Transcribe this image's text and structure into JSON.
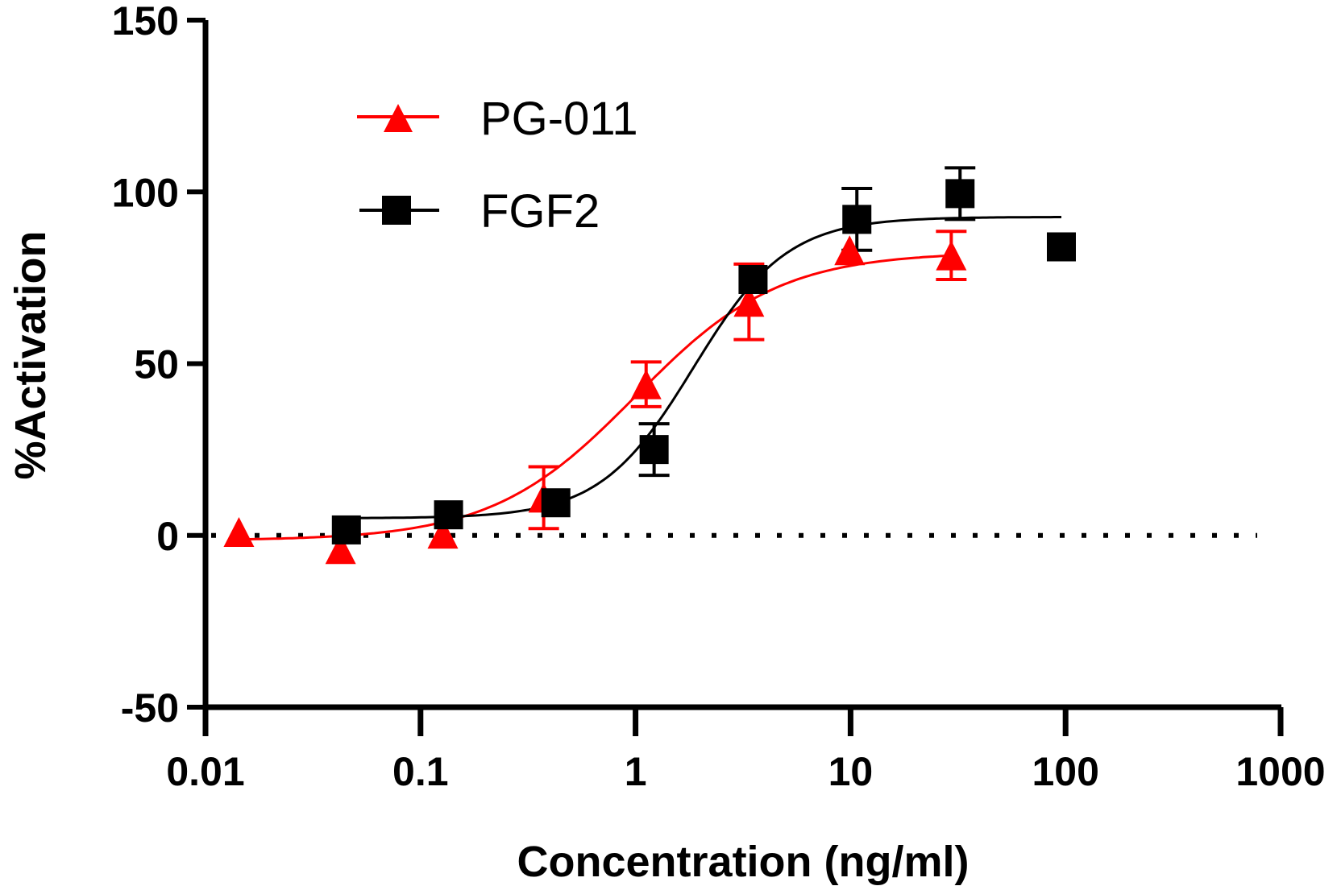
{
  "chart_data": {
    "type": "scatter",
    "title": "",
    "xlabel": "Concentration (ng/ml)",
    "ylabel": "%Activation",
    "xscale": "log",
    "xlim": [
      0.01,
      1000
    ],
    "ylim": [
      -50,
      150
    ],
    "xticks": [
      0.01,
      0.1,
      1,
      10,
      100,
      1000
    ],
    "xtick_labels": [
      "0.01",
      "0.1",
      "1",
      "10",
      "100",
      "1000"
    ],
    "yticks": [
      -50,
      0,
      50,
      100,
      150
    ],
    "ytick_labels": [
      "-50",
      "0",
      "50",
      "100",
      "150"
    ],
    "reference_line": {
      "y": 0,
      "style": "dotted"
    },
    "grid": false,
    "legend": {
      "position": "top-left",
      "entries": [
        "PG-011",
        "FGF2"
      ]
    },
    "series": [
      {
        "name": "PG-011",
        "color": "#ff0000",
        "marker": "triangle",
        "x": [
          0.0143,
          0.0425,
          0.127,
          0.374,
          1.12,
          3.37,
          9.9,
          29.4
        ],
        "y": [
          1,
          -4,
          0.5,
          11,
          44,
          68,
          83,
          81.5
        ],
        "error": [
          0,
          0,
          0,
          9,
          6.5,
          11,
          0,
          7
        ],
        "fit": {
          "model": "4PL",
          "bottom": -1.5,
          "top": 82.5,
          "ec50": 1.0,
          "hill": 1.3,
          "x_range": [
            0.0143,
            29.4
          ]
        }
      },
      {
        "name": "FGF2",
        "color": "#000000",
        "marker": "square",
        "x": [
          0.0452,
          0.135,
          0.426,
          1.22,
          3.52,
          10.7,
          32.3,
          95.6
        ],
        "y": [
          1.6,
          6,
          9.5,
          25,
          74.5,
          92,
          99.5,
          84
        ],
        "error": [
          0,
          0,
          0,
          7.5,
          0,
          9,
          7.5,
          0
        ],
        "fit": {
          "model": "4PL",
          "bottom": 5,
          "top": 92.7,
          "ec50": 1.86,
          "hill": 2.0,
          "x_range": [
            0.0452,
            95.6
          ]
        }
      }
    ]
  }
}
